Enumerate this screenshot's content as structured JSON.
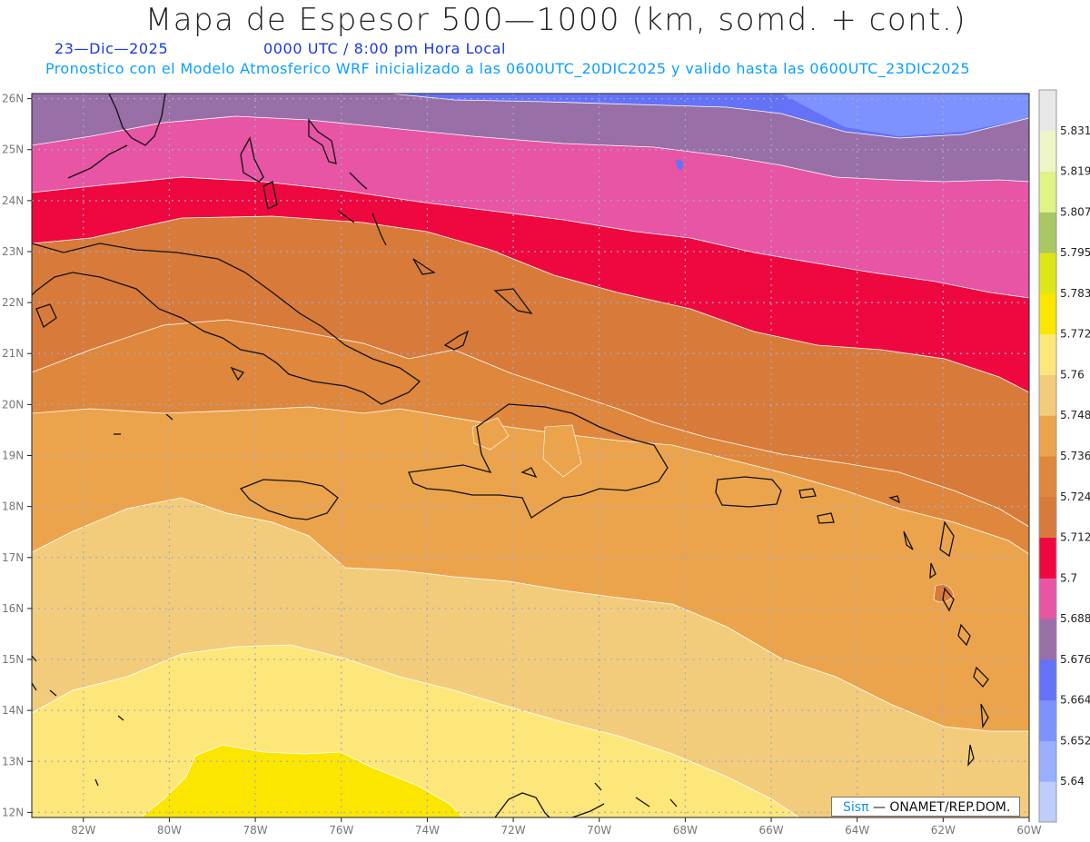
{
  "title": "Mapa de Espesor 500—1000 (km, somd. + cont.)",
  "date": "23—Dic—2025",
  "time": "0000 UTC / 8:00 pm Hora Local",
  "forecast_text": "Pronostico con el Modelo Atmosferico WRF inicializado a las 0600UTC_20DIC2025 y valido hasta las 0600UTC_23DIC2025",
  "credit_brand": "Sisπ",
  "credit_org": "— ONAMET/REP.DOM.",
  "lat_labels": [
    "26N",
    "25N",
    "24N",
    "23N",
    "22N",
    "21N",
    "20N",
    "19N",
    "18N",
    "17N",
    "16N",
    "15N",
    "14N",
    "13N",
    "12N"
  ],
  "lon_labels": [
    "82W",
    "80W",
    "78W",
    "76W",
    "74W",
    "72W",
    "70W",
    "68W",
    "66W",
    "64W",
    "62W",
    "60W"
  ],
  "legend": {
    "values": [
      "5.64",
      "5.652",
      "5.664",
      "5.676",
      "5.688",
      "5.7",
      "5.712",
      "5.724",
      "5.736",
      "5.748",
      "5.76",
      "5.772",
      "5.783",
      "5.795",
      "5.807",
      "5.819",
      "5.831"
    ],
    "colors": [
      "#bfcdfd",
      "#9aafff",
      "#7e92ff",
      "#6472f7",
      "#996fa7",
      "#e755a4",
      "#ef0840",
      "#d87b3a",
      "#df873c",
      "#eca44c",
      "#f2cc7b",
      "#fde77a",
      "#fbe600",
      "#dee617",
      "#a9c863",
      "#e0f387",
      "#eef5c6",
      "#e8e8e8"
    ]
  },
  "colors": {
    "land_outline": "#111111",
    "grid": "#a8a8c8",
    "contour": "#ffffff"
  }
}
